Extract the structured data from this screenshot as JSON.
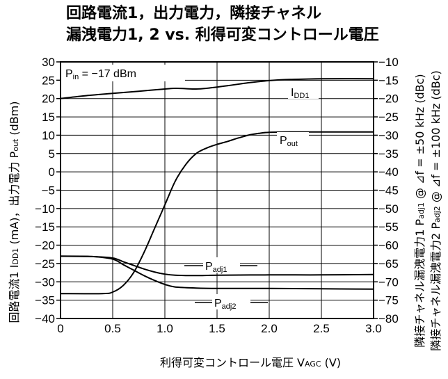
{
  "chart_data": {
    "type": "line",
    "title_line1": "回路電流1，出力電力，隣接チャネル",
    "title_line2": "漏洩電力1, 2 vs. 利得可変コントロール電圧",
    "xlabel_main": "利得可変コントロール電圧 V",
    "xlabel_sub": "AGC",
    "xlabel_unit": " (V)",
    "xlim": [
      0,
      3.0
    ],
    "x_ticks": [
      "0",
      "0.5",
      "1.0",
      "1.5",
      "2.0",
      "2.5",
      "3.0"
    ],
    "x_tick_values": [
      0,
      0.5,
      1.0,
      1.5,
      2.0,
      2.5,
      3.0
    ],
    "ylim_left": [
      -40,
      30
    ],
    "y_left_ticks": [
      "30",
      "25",
      "20",
      "15",
      "10",
      "5",
      "0",
      "−5",
      "−10",
      "−15",
      "−20",
      "−25",
      "−30",
      "−35",
      "−40"
    ],
    "y_left_tick_values": [
      30,
      25,
      20,
      15,
      10,
      5,
      0,
      -5,
      -10,
      -15,
      -20,
      -25,
      -30,
      -35,
      -40
    ],
    "ylabel_left": {
      "part1": "回路電流1  I",
      "part1_sub": "DD1",
      "part2": " (mA)，出力電力  P",
      "part2_sub": "out",
      "part3": " (dBm)"
    },
    "ylim_right": [
      -80,
      -10
    ],
    "y_right_ticks": [
      "−10",
      "−15",
      "−20",
      "−25",
      "−30",
      "−35",
      "−40",
      "−45",
      "−50",
      "−55",
      "−60",
      "−65",
      "−70",
      "−75",
      "−80"
    ],
    "y_right_tick_values": [
      -10,
      -15,
      -20,
      -25,
      -30,
      -35,
      -40,
      -45,
      -50,
      -55,
      -60,
      -65,
      -70,
      -75,
      -80
    ],
    "ylabel_right_1": {
      "part1": "隣接チャネル漏洩電力1  P",
      "part1_sub": "adj1",
      "part2": "  @ ⊿f = ±50 kHz (dBc)"
    },
    "ylabel_right_2": {
      "part1": "隣接チャネル漏洩電力2  P",
      "part1_sub": "adj2",
      "part2": "  @ ⊿f = ±100 kHz (dBc)"
    },
    "condition": {
      "main": "P",
      "sub": "in",
      "rest": " = −17 dBm"
    },
    "grid": true,
    "series": [
      {
        "name": "I",
        "name_sub": "DD1",
        "axis": "left",
        "x": [
          0,
          0.25,
          0.5,
          0.75,
          1.0,
          1.1,
          1.2,
          1.3,
          1.4,
          1.6,
          1.8,
          2.0,
          2.2,
          2.5,
          3.0
        ],
        "y": [
          20,
          20.8,
          21.4,
          22.0,
          22.6,
          22.8,
          22.7,
          22.6,
          22.8,
          23.5,
          24.3,
          24.9,
          25.2,
          25.4,
          25.4
        ]
      },
      {
        "name": "P",
        "name_sub": "out",
        "axis": "left",
        "x": [
          0,
          0.4,
          0.5,
          0.6,
          0.7,
          0.8,
          0.9,
          1.0,
          1.1,
          1.2,
          1.3,
          1.4,
          1.5,
          1.6,
          1.7,
          1.8,
          1.9,
          2.0,
          2.2,
          2.5,
          3.0
        ],
        "y": [
          -33.2,
          -33.2,
          -32.8,
          -31.0,
          -27.5,
          -22.0,
          -15.5,
          -9.0,
          -2.5,
          2.0,
          5.0,
          6.5,
          7.5,
          8.3,
          9.2,
          10.0,
          10.5,
          10.8,
          10.9,
          10.9,
          10.9
        ]
      },
      {
        "name": "P",
        "name_sub": "adj1",
        "axis": "right",
        "x": [
          0,
          0.3,
          0.5,
          0.6,
          0.7,
          0.8,
          0.9,
          1.0,
          1.1,
          1.3,
          1.5,
          2.0,
          2.5,
          3.0
        ],
        "y": [
          -63,
          -63.1,
          -63.5,
          -64.5,
          -65.5,
          -66.5,
          -67.3,
          -67.9,
          -68.2,
          -68.3,
          -68.2,
          -68.1,
          -68.1,
          -68.0
        ]
      },
      {
        "name": "P",
        "name_sub": "adj2",
        "axis": "right",
        "x": [
          0,
          0.3,
          0.5,
          0.6,
          0.7,
          0.8,
          0.9,
          1.0,
          1.1,
          1.3,
          1.5,
          2.0,
          2.5,
          3.0
        ],
        "y": [
          -63,
          -63.1,
          -63.8,
          -65.3,
          -66.8,
          -68.3,
          -69.6,
          -70.7,
          -71.4,
          -71.7,
          -71.8,
          -71.8,
          -71.9,
          -72.0
        ]
      }
    ]
  }
}
